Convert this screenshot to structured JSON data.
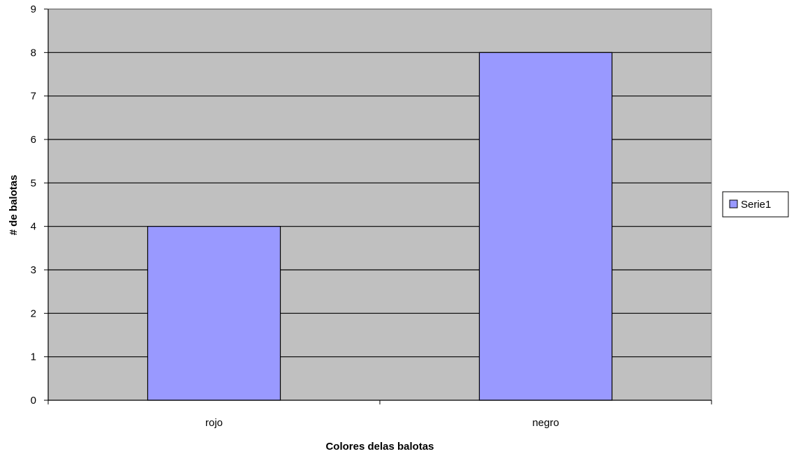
{
  "chart_data": {
    "type": "bar",
    "categories": [
      "rojo",
      "negro"
    ],
    "series": [
      {
        "name": "Serie1",
        "values": [
          4,
          8
        ],
        "color": "#9999ff"
      }
    ],
    "xlabel": "Colores delas balotas",
    "ylabel": "# de balotas",
    "ylim": [
      0,
      9
    ],
    "ytick_step": 1,
    "grid": true,
    "plot_background": "#c0c0c0",
    "legend_position": "right"
  }
}
